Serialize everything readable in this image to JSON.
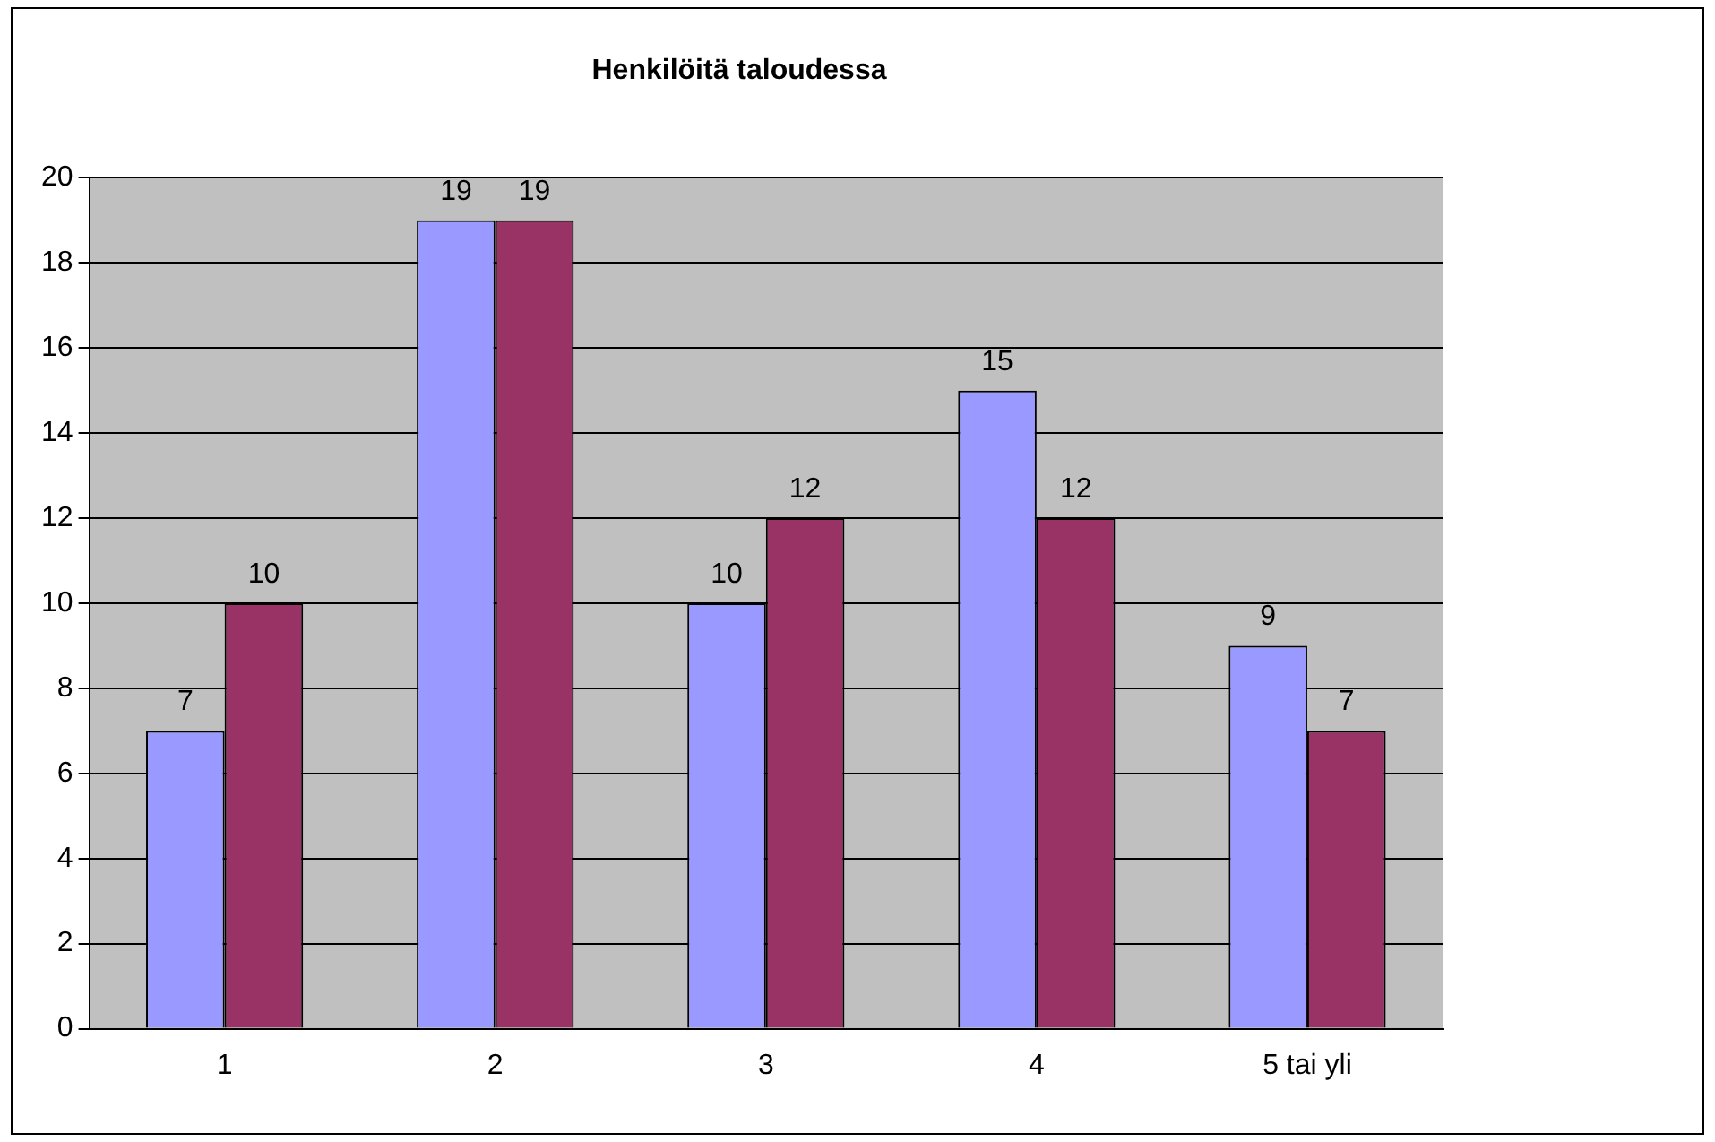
{
  "chart_data": {
    "type": "bar",
    "title": "Henkilöitä taloudessa",
    "categories": [
      "1",
      "2",
      "3",
      "4",
      "5 tai yli"
    ],
    "series": [
      {
        "color": "#9999ff",
        "values": [
          7,
          19,
          10,
          15,
          9
        ]
      },
      {
        "color": "#993366",
        "values": [
          10,
          19,
          12,
          12,
          7
        ]
      }
    ],
    "ylim": [
      0,
      20
    ],
    "yticks": [
      0,
      2,
      4,
      6,
      8,
      10,
      12,
      14,
      16,
      18,
      20
    ],
    "grid": "y",
    "data_labels": true,
    "legend": false
  }
}
